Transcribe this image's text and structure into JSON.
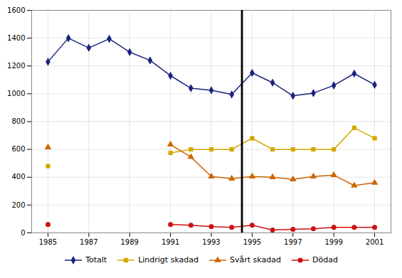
{
  "chart_data": {
    "type": "line",
    "x": [
      1985,
      1986,
      1987,
      1988,
      1989,
      1990,
      1991,
      1992,
      1993,
      1994,
      1995,
      1996,
      1997,
      1998,
      1999,
      2000,
      2001
    ],
    "series": [
      {
        "name": "Totalt",
        "color": "#1a237e",
        "marker": "diamond",
        "values": [
          1230,
          1400,
          1330,
          1395,
          1300,
          1240,
          1130,
          1040,
          1025,
          995,
          1150,
          1080,
          985,
          1005,
          1060,
          1145,
          1065
        ]
      },
      {
        "name": "Lindrigt skadad",
        "color": "#d4a800",
        "marker": "square",
        "values": [
          480,
          null,
          null,
          null,
          null,
          null,
          575,
          600,
          600,
          600,
          680,
          600,
          600,
          600,
          600,
          755,
          680
        ]
      },
      {
        "name": "Svårt skadad",
        "color": "#cc6600",
        "marker": "triangle",
        "values": [
          615,
          null,
          null,
          null,
          null,
          null,
          635,
          545,
          405,
          390,
          405,
          400,
          385,
          405,
          415,
          340,
          360
        ]
      },
      {
        "name": "Dödad",
        "color": "#cc1111",
        "marker": "circle",
        "values": [
          60,
          null,
          null,
          null,
          null,
          null,
          60,
          55,
          45,
          40,
          55,
          20,
          25,
          30,
          40,
          40,
          40
        ]
      }
    ],
    "vline": 1994.5,
    "xlim": [
      1984.2,
      2001.8
    ],
    "xticks": [
      1985,
      1987,
      1989,
      1991,
      1993,
      1995,
      1997,
      1999,
      2001
    ],
    "ylim": [
      0,
      1600
    ],
    "yticks": [
      0,
      200,
      400,
      600,
      800,
      1000,
      1200,
      1400,
      1600
    ],
    "grid": true,
    "legend": "bottom"
  }
}
